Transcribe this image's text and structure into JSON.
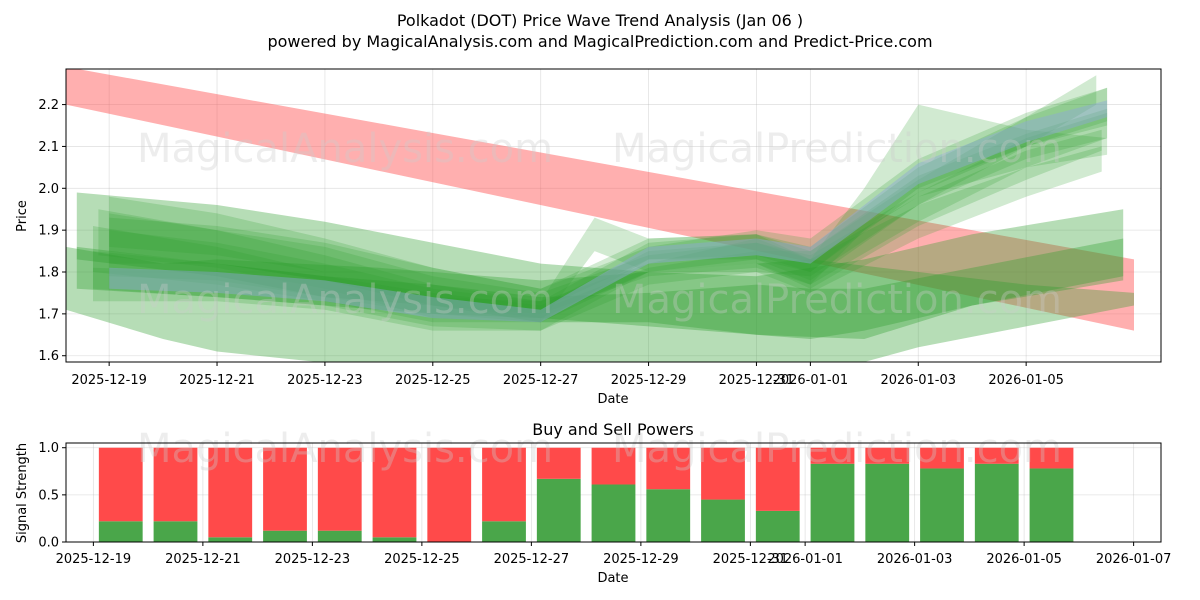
{
  "chart_data": [
    {
      "type": "area",
      "title": "Polkadot (DOT) Price Wave Trend Analysis (Jan 06 )",
      "subtitle": "powered by MagicalAnalysis.com and MagicalPrediction.com and Predict-Price.com",
      "xlabel": "Date",
      "ylabel": "Price",
      "xlim": [
        -0.8,
        19.5
      ],
      "ylim": [
        1.585,
        2.285
      ],
      "x_ticks": [
        0,
        2,
        4,
        6,
        8,
        10,
        12,
        13,
        15,
        17
      ],
      "x_tick_labels": [
        "2025-12-19",
        "2025-12-21",
        "2025-12-23",
        "2025-12-25",
        "2025-12-27",
        "2025-12-29",
        "2025-12-31",
        "2026-01-01",
        "2026-01-03",
        "2026-01-05"
      ],
      "y_ticks": [
        1.6,
        1.7,
        1.8,
        1.9,
        2.0,
        2.1,
        2.2
      ],
      "y_tick_labels": [
        "1.6",
        "1.7",
        "1.8",
        "1.9",
        "2.0",
        "2.1",
        "2.2"
      ],
      "grid": true,
      "colors": {
        "red_band": "#ff4d4d",
        "green_band": "#2e9e2e",
        "blue_band": "#8fa8d8"
      },
      "series": [
        {
          "name": "red-band",
          "color": "red",
          "opacity": 0.45,
          "x": [
            -0.8,
            19
          ],
          "upper": [
            2.29,
            1.83
          ],
          "lower": [
            2.2,
            1.66
          ]
        },
        {
          "name": "green-band-wide-low",
          "color": "green",
          "opacity": 0.35,
          "x": [
            -0.8,
            1,
            2,
            5,
            8,
            10,
            13,
            15,
            17,
            19
          ],
          "upper": [
            1.86,
            1.82,
            1.83,
            1.81,
            1.78,
            1.8,
            1.83,
            1.8,
            1.77,
            1.75
          ],
          "lower": [
            1.71,
            1.64,
            1.61,
            1.57,
            1.55,
            1.54,
            1.55,
            1.62,
            1.67,
            1.72
          ]
        },
        {
          "name": "green-band-wide-high",
          "color": "green",
          "opacity": 0.35,
          "x": [
            -0.6,
            2,
            4,
            6,
            8,
            10,
            12,
            14,
            16,
            18.8
          ],
          "upper": [
            1.99,
            1.96,
            1.92,
            1.87,
            1.82,
            1.8,
            1.79,
            1.83,
            1.89,
            1.95
          ],
          "lower": [
            1.83,
            1.79,
            1.74,
            1.72,
            1.68,
            1.68,
            1.65,
            1.64,
            1.72,
            1.78
          ]
        },
        {
          "name": "green-band-dark",
          "color": "green",
          "opacity": 0.35,
          "x": [
            -0.6,
            2,
            4,
            6,
            8,
            10,
            12,
            13,
            14,
            16,
            18.8
          ],
          "upper": [
            1.86,
            1.82,
            1.79,
            1.77,
            1.74,
            1.75,
            1.77,
            1.76,
            1.76,
            1.81,
            1.88
          ],
          "lower": [
            1.76,
            1.74,
            1.72,
            1.7,
            1.69,
            1.67,
            1.65,
            1.64,
            1.66,
            1.72,
            1.79
          ]
        },
        {
          "name": "wave-1",
          "color": "green",
          "opacity": 0.22,
          "x": [
            0,
            2,
            4,
            6,
            8,
            10,
            12,
            13,
            15,
            17,
            18.5
          ],
          "upper": [
            1.98,
            1.94,
            1.88,
            1.81,
            1.76,
            1.86,
            1.9,
            1.88,
            2.07,
            2.18,
            2.24
          ],
          "lower": [
            1.82,
            1.82,
            1.78,
            1.72,
            1.69,
            1.8,
            1.83,
            1.8,
            2.0,
            2.1,
            2.15
          ]
        },
        {
          "name": "wave-2",
          "color": "green",
          "opacity": 0.22,
          "x": [
            -0.2,
            2,
            4,
            6,
            8,
            10,
            12,
            13,
            15,
            17,
            18.5
          ],
          "upper": [
            1.95,
            1.9,
            1.84,
            1.77,
            1.73,
            1.87,
            1.89,
            1.85,
            2.03,
            2.13,
            2.19
          ],
          "lower": [
            1.84,
            1.81,
            1.76,
            1.69,
            1.68,
            1.83,
            1.83,
            1.78,
            1.96,
            2.07,
            2.12
          ]
        },
        {
          "name": "wave-3",
          "color": "green",
          "opacity": 0.22,
          "x": [
            -0.3,
            2,
            4,
            6,
            8,
            10,
            12,
            13,
            15,
            17,
            18.4
          ],
          "upper": [
            1.91,
            1.86,
            1.8,
            1.74,
            1.73,
            1.82,
            1.88,
            1.83,
            1.98,
            2.09,
            2.14
          ],
          "lower": [
            1.8,
            1.77,
            1.73,
            1.68,
            1.68,
            1.8,
            1.82,
            1.76,
            1.91,
            2.02,
            2.09
          ]
        },
        {
          "name": "wave-4",
          "color": "green",
          "opacity": 0.22,
          "x": [
            0,
            2,
            4,
            6,
            8,
            9,
            10,
            12,
            13,
            14,
            15,
            17,
            18.5
          ],
          "upper": [
            1.9,
            1.87,
            1.82,
            1.76,
            1.73,
            1.93,
            1.88,
            1.89,
            1.83,
            2.0,
            2.2,
            2.14,
            2.12
          ],
          "lower": [
            1.79,
            1.78,
            1.74,
            1.7,
            1.68,
            1.85,
            1.8,
            1.82,
            1.77,
            1.9,
            1.98,
            2.05,
            2.08
          ]
        },
        {
          "name": "wave-5",
          "color": "green",
          "opacity": 0.22,
          "x": [
            -0.3,
            2,
            4,
            6,
            8,
            10,
            12,
            13,
            15,
            17,
            18.4
          ],
          "upper": [
            1.85,
            1.82,
            1.79,
            1.75,
            1.72,
            1.85,
            1.87,
            1.83,
            1.96,
            2.05,
            2.1
          ],
          "lower": [
            1.76,
            1.74,
            1.72,
            1.67,
            1.66,
            1.8,
            1.8,
            1.75,
            1.88,
            1.98,
            2.04
          ]
        },
        {
          "name": "wave-6",
          "color": "green",
          "opacity": 0.22,
          "x": [
            -0.3,
            2,
            4,
            6,
            8,
            10,
            12,
            13,
            15,
            17,
            18.5
          ],
          "upper": [
            1.81,
            1.8,
            1.78,
            1.74,
            1.71,
            1.81,
            1.85,
            1.85,
            2.02,
            2.17,
            2.24
          ],
          "lower": [
            1.73,
            1.73,
            1.71,
            1.66,
            1.66,
            1.77,
            1.8,
            1.79,
            1.96,
            2.1,
            2.16
          ]
        },
        {
          "name": "wave-7",
          "color": "green",
          "opacity": 0.22,
          "x": [
            0,
            2,
            4,
            6,
            8,
            10,
            12,
            13,
            15,
            17,
            18.5
          ],
          "upper": [
            1.94,
            1.9,
            1.86,
            1.79,
            1.75,
            1.84,
            1.87,
            1.84,
            1.99,
            2.12,
            2.18
          ],
          "lower": [
            1.85,
            1.82,
            1.78,
            1.72,
            1.7,
            1.79,
            1.81,
            1.77,
            1.92,
            2.05,
            2.12
          ]
        },
        {
          "name": "wave-8",
          "color": "green",
          "opacity": 0.22,
          "x": [
            0,
            2,
            4,
            6,
            8,
            10,
            12,
            13,
            15,
            17,
            18.3
          ],
          "upper": [
            1.93,
            1.91,
            1.87,
            1.81,
            1.76,
            1.88,
            1.89,
            1.86,
            2.05,
            2.17,
            2.27
          ],
          "lower": [
            1.86,
            1.84,
            1.8,
            1.74,
            1.71,
            1.83,
            1.84,
            1.8,
            1.99,
            2.1,
            2.2
          ]
        },
        {
          "name": "wave-blue",
          "color": "blue",
          "opacity": 0.45,
          "x": [
            0,
            2,
            4,
            6,
            8,
            10,
            12,
            13,
            15,
            17,
            18.5
          ],
          "upper": [
            1.81,
            1.8,
            1.78,
            1.74,
            1.71,
            1.86,
            1.88,
            1.86,
            2.06,
            2.16,
            2.21
          ],
          "lower": [
            1.76,
            1.75,
            1.73,
            1.69,
            1.68,
            1.82,
            1.84,
            1.82,
            2.01,
            2.11,
            2.17
          ]
        }
      ]
    },
    {
      "type": "bar",
      "title": "Buy and Sell Powers",
      "xlabel": "Date",
      "ylabel": "Signal Strength",
      "xlim": [
        -1,
        19
      ],
      "ylim": [
        0,
        1.05
      ],
      "x_ticks": [
        -0.5,
        1.5,
        3.5,
        5.5,
        7.5,
        9.5,
        11.5,
        12.5,
        14.5,
        16.5,
        18.5
      ],
      "x_tick_labels": [
        "2025-12-19",
        "2025-12-21",
        "2025-12-23",
        "2025-12-25",
        "2025-12-27",
        "2025-12-29",
        "2025-12-31",
        "2026-01-01",
        "2026-01-03",
        "2026-01-05",
        "2026-01-07"
      ],
      "y_ticks": [
        0.0,
        0.5,
        1.0
      ],
      "y_tick_labels": [
        "0.0",
        "0.5",
        "1.0"
      ],
      "grid": true,
      "colors": {
        "buy": "#4aa64a",
        "sell": "#ff4a4a"
      },
      "series": [
        {
          "name": "Buy",
          "values": [
            0.22,
            0.22,
            0.05,
            0.12,
            0.12,
            0.05,
            0.0,
            0.22,
            0.67,
            0.61,
            0.56,
            0.45,
            0.33,
            0.83,
            0.83,
            0.78,
            0.83,
            0.78
          ]
        },
        {
          "name": "Sell",
          "values": [
            0.78,
            0.78,
            0.95,
            0.88,
            0.88,
            0.95,
            1.0,
            0.78,
            0.33,
            0.39,
            0.44,
            0.55,
            0.67,
            0.17,
            0.17,
            0.22,
            0.17,
            0.22
          ]
        }
      ]
    }
  ],
  "watermarks": [
    "MagicalAnalysis.com",
    "MagicalPrediction.com"
  ]
}
